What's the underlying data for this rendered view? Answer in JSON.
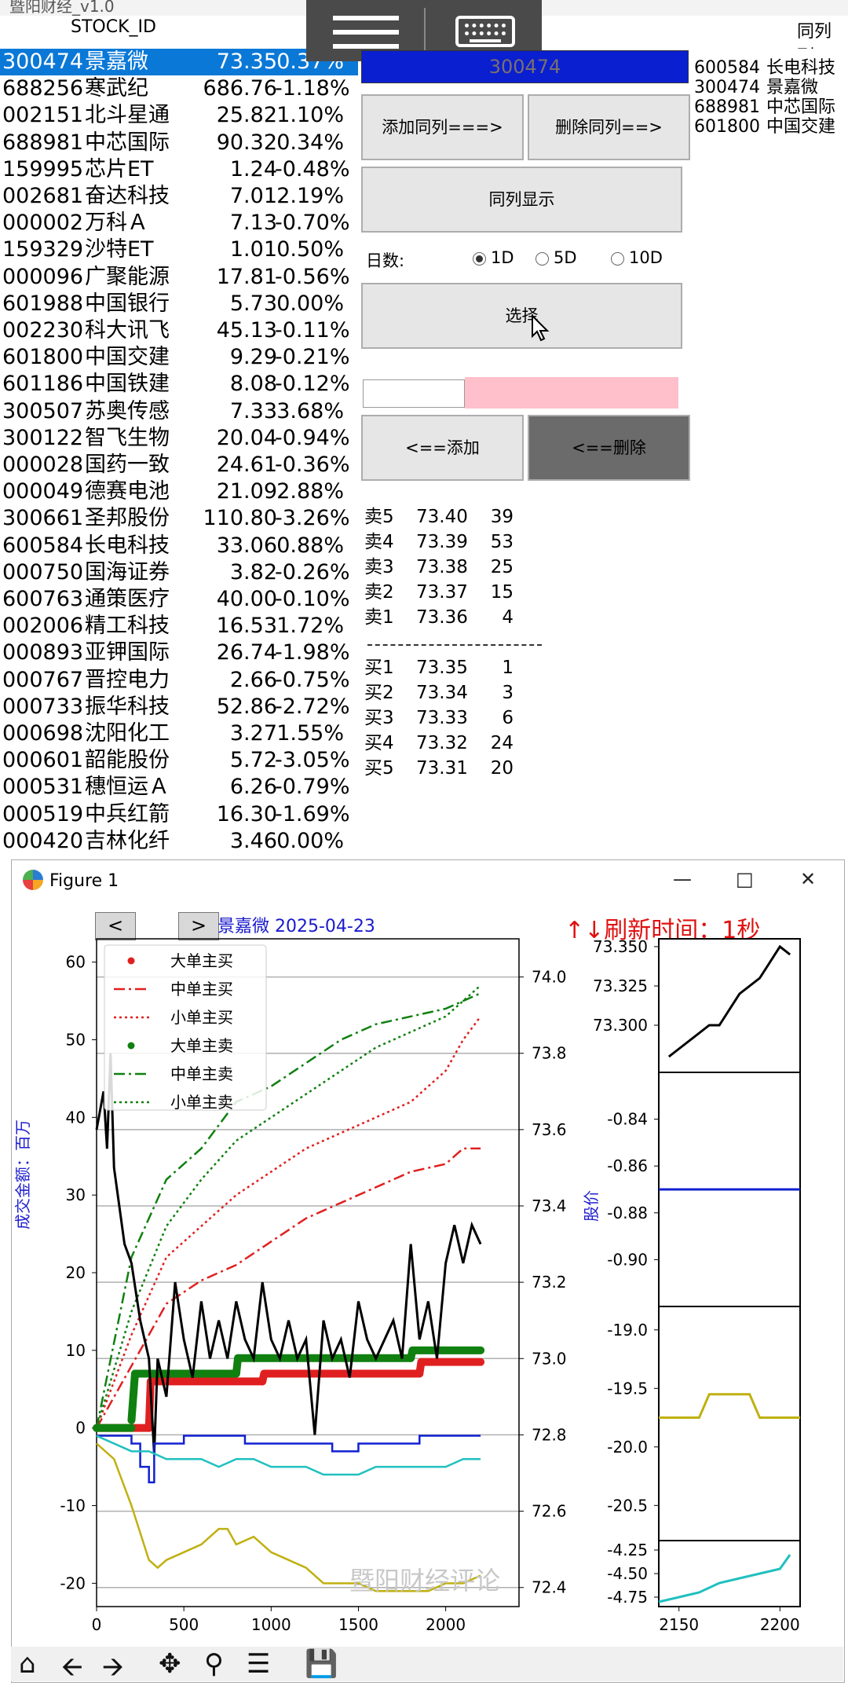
{
  "app": {
    "title": "暨阳财经_v1.0",
    "stock_id_header": "STOCK_ID",
    "same_column_header": "同列列"
  },
  "stocks": [
    {
      "code": "300474",
      "name": "景嘉微",
      "price": "73.35",
      "change": "0.37%"
    },
    {
      "code": "688256",
      "name": "寒武纪",
      "price": "686.76",
      "change": "-1.18%"
    },
    {
      "code": "002151",
      "name": "北斗星通",
      "price": "25.82",
      "change": "1.10%"
    },
    {
      "code": "688981",
      "name": "中芯国际",
      "price": "90.32",
      "change": "0.34%"
    },
    {
      "code": "159995",
      "name": "芯片ET",
      "price": "1.24",
      "change": "-0.48%"
    },
    {
      "code": "002681",
      "name": "奋达科技",
      "price": "7.01",
      "change": "2.19%"
    },
    {
      "code": "000002",
      "name": "万科Ａ",
      "price": "7.13",
      "change": "-0.70%"
    },
    {
      "code": "159329",
      "name": "沙特ET",
      "price": "1.01",
      "change": "0.50%"
    },
    {
      "code": "000096",
      "name": "广聚能源",
      "price": "17.81",
      "change": "-0.56%"
    },
    {
      "code": "601988",
      "name": "中国银行",
      "price": "5.73",
      "change": "0.00%"
    },
    {
      "code": "002230",
      "name": "科大讯飞",
      "price": "45.13",
      "change": "-0.11%"
    },
    {
      "code": "601800",
      "name": "中国交建",
      "price": "9.29",
      "change": "-0.21%"
    },
    {
      "code": "601186",
      "name": "中国铁建",
      "price": "8.08",
      "change": "-0.12%"
    },
    {
      "code": "300507",
      "name": "苏奥传感",
      "price": "7.33",
      "change": "3.68%"
    },
    {
      "code": "300122",
      "name": "智飞生物",
      "price": "20.04",
      "change": "-0.94%"
    },
    {
      "code": "000028",
      "name": "国药一致",
      "price": "24.61",
      "change": "-0.36%"
    },
    {
      "code": "000049",
      "name": "德赛电池",
      "price": "21.09",
      "change": "2.88%"
    },
    {
      "code": "300661",
      "name": "圣邦股份",
      "price": "110.80",
      "change": "-3.26%"
    },
    {
      "code": "600584",
      "name": "长电科技",
      "price": "33.06",
      "change": "0.88%"
    },
    {
      "code": "000750",
      "name": "国海证券",
      "price": "3.82",
      "change": "-0.26%"
    },
    {
      "code": "600763",
      "name": "通策医疗",
      "price": "40.00",
      "change": "-0.10%"
    },
    {
      "code": "002006",
      "name": "精工科技",
      "price": "16.53",
      "change": "1.72%"
    },
    {
      "code": "000893",
      "name": "亚钾国际",
      "price": "26.74",
      "change": "-1.98%"
    },
    {
      "code": "000767",
      "name": "晋控电力",
      "price": "2.66",
      "change": "-0.75%"
    },
    {
      "code": "000733",
      "name": "振华科技",
      "price": "52.86",
      "change": "-2.72%"
    },
    {
      "code": "000698",
      "name": "沈阳化工",
      "price": "3.27",
      "change": "1.55%"
    },
    {
      "code": "000601",
      "name": "韶能股份",
      "price": "5.72",
      "change": "-3.05%"
    },
    {
      "code": "000531",
      "name": "穗恒运Ａ",
      "price": "6.26",
      "change": "-0.79%"
    },
    {
      "code": "000519",
      "name": "中兵红箭",
      "price": "16.30",
      "change": "-1.69%"
    },
    {
      "code": "000420",
      "name": "吉林化纤",
      "price": "3.46",
      "change": "0.00%"
    }
  ],
  "controls": {
    "code_value": "300474",
    "add_same_col": "添加同列===>",
    "del_same_col": "删除同列==>",
    "show_same_col": "同列显示",
    "days_label": "日数:",
    "radio_1d": "1D",
    "radio_5d": "5D",
    "radio_10d": "10D",
    "selected_days": "1D",
    "select_btn": "选择",
    "add_btn": "<==添加",
    "del_btn": "<==删除"
  },
  "same_col_list": [
    {
      "code": "600584",
      "name": "长电科技"
    },
    {
      "code": "300474",
      "name": "景嘉微"
    },
    {
      "code": "688981",
      "name": "中芯国际"
    },
    {
      "code": "601800",
      "name": "中国交建"
    }
  ],
  "orderbook": {
    "asks": [
      {
        "label": "卖5",
        "price": "73.40",
        "vol": "39"
      },
      {
        "label": "卖4",
        "price": "73.39",
        "vol": "53"
      },
      {
        "label": "卖3",
        "price": "73.38",
        "vol": "25"
      },
      {
        "label": "卖2",
        "price": "73.37",
        "vol": "15"
      },
      {
        "label": "卖1",
        "price": "73.36",
        "vol": "4"
      }
    ],
    "bids": [
      {
        "label": "买1",
        "price": "73.35",
        "vol": "1"
      },
      {
        "label": "买2",
        "price": "73.34",
        "vol": "3"
      },
      {
        "label": "买3",
        "price": "73.33",
        "vol": "6"
      },
      {
        "label": "买4",
        "price": "73.32",
        "vol": "24"
      },
      {
        "label": "买5",
        "price": "73.31",
        "vol": "20"
      }
    ]
  },
  "figure": {
    "window_title": "Figure 1",
    "chart_title": "景嘉微  2025-04-23",
    "refresh_label": "↑↓刷新时间：1秒",
    "ylabel_left": "成交金额：百万",
    "ylabel_right": "股价",
    "watermark": "暨阳财经评论",
    "prev_btn": "<",
    "next_btn": ">"
  },
  "chart_data": [
    {
      "type": "line",
      "title": "景嘉微  2025-04-23",
      "xlabel": "",
      "ylabel": "成交金额：百万",
      "ylabel_right": "股价",
      "xlim": [
        0,
        2420
      ],
      "ylim": [
        -23,
        63
      ],
      "ylim_right": [
        72.35,
        74.1
      ],
      "x_ticks": [
        0,
        500,
        1000,
        1500,
        2000
      ],
      "y_ticks": [
        -20,
        -10,
        0,
        10,
        20,
        30,
        40,
        50,
        60
      ],
      "y_ticks_right": [
        "72.4",
        "72.6",
        "72.8",
        "73.0",
        "73.2",
        "73.4",
        "73.6",
        "73.8",
        "74.0"
      ],
      "legend_position": "top-left",
      "legend": [
        "大单主买",
        "中单主买",
        "小单主买",
        "大单主卖",
        "中单主卖",
        "小单主卖"
      ],
      "series": [
        {
          "name": "大单主买",
          "color": "#e02020",
          "style": "dots",
          "x": [
            0,
            300,
            310,
            950,
            960,
            1850,
            1860,
            2200
          ],
          "y": [
            0,
            0,
            6,
            6,
            7,
            7,
            8.5,
            8.5
          ]
        },
        {
          "name": "中单主买",
          "color": "#e02020",
          "style": "dashdot",
          "x": [
            0,
            200,
            400,
            600,
            800,
            1000,
            1200,
            1400,
            1600,
            1800,
            2000,
            2100,
            2200
          ],
          "y": [
            0,
            8,
            16,
            19,
            21,
            24,
            27,
            29,
            31,
            33,
            34,
            36,
            36
          ]
        },
        {
          "name": "小单主买",
          "color": "#e02020",
          "style": "dotted",
          "x": [
            0,
            200,
            400,
            600,
            800,
            1000,
            1200,
            1400,
            1600,
            1800,
            2000,
            2100,
            2200
          ],
          "y": [
            0,
            12,
            22,
            26,
            30,
            33,
            36,
            38,
            40,
            42,
            46,
            50,
            53
          ]
        },
        {
          "name": "大单主卖",
          "color": "#108010",
          "style": "dots",
          "x": [
            0,
            200,
            220,
            800,
            810,
            1800,
            1810,
            2200
          ],
          "y": [
            0,
            1,
            7,
            7,
            9,
            9,
            10,
            10
          ]
        },
        {
          "name": "中单主卖",
          "color": "#108010",
          "style": "dashdot",
          "x": [
            0,
            200,
            400,
            600,
            800,
            1000,
            1200,
            1400,
            1600,
            1800,
            2000,
            2100,
            2200
          ],
          "y": [
            0,
            22,
            32,
            36,
            42,
            44,
            47,
            50,
            52,
            53,
            54,
            55,
            56
          ]
        },
        {
          "name": "小单主卖",
          "color": "#108010",
          "style": "dotted",
          "x": [
            0,
            200,
            400,
            600,
            800,
            1000,
            1200,
            1400,
            1600,
            1800,
            2000,
            2100,
            2200
          ],
          "y": [
            0,
            15,
            26,
            32,
            37,
            40,
            43,
            46,
            49,
            51,
            53,
            55,
            57
          ]
        },
        {
          "name": "",
          "color": "#000000",
          "style": "solid",
          "axis": "right",
          "x": [
            0,
            40,
            60,
            80,
            100,
            130,
            160,
            200,
            250,
            300,
            330,
            350,
            400,
            450,
            500,
            550,
            600,
            650,
            700,
            750,
            800,
            850,
            900,
            950,
            1000,
            1050,
            1100,
            1150,
            1200,
            1250,
            1300,
            1350,
            1400,
            1450,
            1500,
            1550,
            1600,
            1650,
            1700,
            1750,
            1800,
            1850,
            1900,
            1950,
            2000,
            2050,
            2100,
            2150,
            2200
          ],
          "y": [
            73.6,
            73.7,
            73.55,
            73.8,
            73.5,
            73.4,
            73.3,
            73.25,
            73.1,
            73.0,
            72.75,
            73.0,
            72.9,
            73.2,
            73.05,
            72.95,
            73.15,
            73.0,
            73.1,
            73.0,
            73.15,
            73.05,
            73.0,
            73.2,
            73.05,
            73.0,
            73.1,
            73.0,
            73.05,
            72.8,
            73.1,
            73.0,
            73.05,
            72.95,
            73.15,
            73.05,
            73.0,
            73.05,
            73.1,
            73.0,
            73.3,
            73.05,
            73.15,
            73.0,
            73.25,
            73.35,
            73.25,
            73.35,
            73.3
          ]
        },
        {
          "name": "",
          "color": "#1020d0",
          "style": "step",
          "x": [
            0,
            150,
            200,
            250,
            300,
            330,
            400,
            500,
            850,
            1000,
            1350,
            1500,
            1850,
            2200
          ],
          "y": [
            -1,
            -1,
            -2,
            -5,
            -7,
            -2,
            -2,
            -1,
            -2,
            -2,
            -3,
            -2,
            -1,
            -1
          ]
        },
        {
          "name": "",
          "color": "#20c0c0",
          "style": "solid",
          "x": [
            0,
            100,
            200,
            300,
            400,
            500,
            600,
            700,
            800,
            900,
            1000,
            1100,
            1200,
            1300,
            1400,
            1500,
            1600,
            1700,
            1800,
            1900,
            2000,
            2100,
            2200
          ],
          "y": [
            -1,
            -2,
            -3,
            -3,
            -4,
            -4,
            -4,
            -5,
            -4,
            -4,
            -5,
            -5,
            -5,
            -6,
            -6,
            -6,
            -5,
            -5,
            -5,
            -5,
            -5,
            -4,
            -4
          ]
        },
        {
          "name": "",
          "color": "#c0b010",
          "style": "solid",
          "x": [
            0,
            100,
            200,
            300,
            350,
            400,
            500,
            600,
            700,
            750,
            800,
            900,
            1000,
            1100,
            1200,
            1300,
            1400,
            1500,
            1600,
            1700,
            1800,
            1900,
            2000,
            2100,
            2200
          ],
          "y": [
            -2,
            -4,
            -10,
            -17,
            -18,
            -17,
            -16,
            -15,
            -13,
            -13,
            -15,
            -14,
            -16,
            -17,
            -18,
            -20,
            -20,
            -20,
            -21,
            -21,
            -21,
            -21,
            -20,
            -20,
            -19
          ]
        }
      ]
    },
    {
      "type": "line",
      "title": "",
      "xlim": [
        2140,
        2210
      ],
      "ylim": [
        73.27,
        73.355
      ],
      "y_ticks": [
        "73.300",
        "73.325",
        "73.350"
      ],
      "series": [
        {
          "name": "",
          "color": "#000000",
          "x": [
            2145,
            2150,
            2155,
            2160,
            2165,
            2170,
            2175,
            2180,
            2185,
            2190,
            2195,
            2200,
            2205
          ],
          "y": [
            73.28,
            73.285,
            73.29,
            73.295,
            73.3,
            73.3,
            73.31,
            73.32,
            73.325,
            73.33,
            73.34,
            73.35,
            73.345
          ]
        }
      ]
    },
    {
      "type": "line",
      "title": "",
      "xlim": [
        2140,
        2210
      ],
      "ylim": [
        -0.92,
        -0.82
      ],
      "y_ticks": [
        "-0.84",
        "-0.86",
        "-0.88",
        "-0.90"
      ],
      "series": [
        {
          "name": "",
          "color": "#1020d0",
          "x": [
            2140,
            2210
          ],
          "y": [
            -0.87,
            -0.87
          ]
        }
      ]
    },
    {
      "type": "line",
      "title": "",
      "xlim": [
        2140,
        2210
      ],
      "ylim": [
        -20.8,
        -18.8
      ],
      "y_ticks": [
        "-19.0",
        "-19.5",
        "-20.0",
        "-20.5"
      ],
      "series": [
        {
          "name": "",
          "color": "#c0b010",
          "x": [
            2140,
            2160,
            2165,
            2185,
            2190,
            2210
          ],
          "y": [
            -19.75,
            -19.75,
            -19.55,
            -19.55,
            -19.75,
            -19.75
          ]
        }
      ]
    },
    {
      "type": "line",
      "title": "",
      "xlim": [
        2140,
        2210
      ],
      "ylim": [
        -4.85,
        -4.15
      ],
      "y_ticks": [
        "-4.25",
        "-4.50",
        "-4.75"
      ],
      "x_ticks": [
        2150,
        2200
      ],
      "series": [
        {
          "name": "",
          "color": "#20c0c0",
          "x": [
            2140,
            2150,
            2160,
            2170,
            2180,
            2190,
            2200,
            2205
          ],
          "y": [
            -4.8,
            -4.75,
            -4.7,
            -4.6,
            -4.55,
            -4.5,
            -4.45,
            -4.3
          ]
        }
      ]
    }
  ]
}
